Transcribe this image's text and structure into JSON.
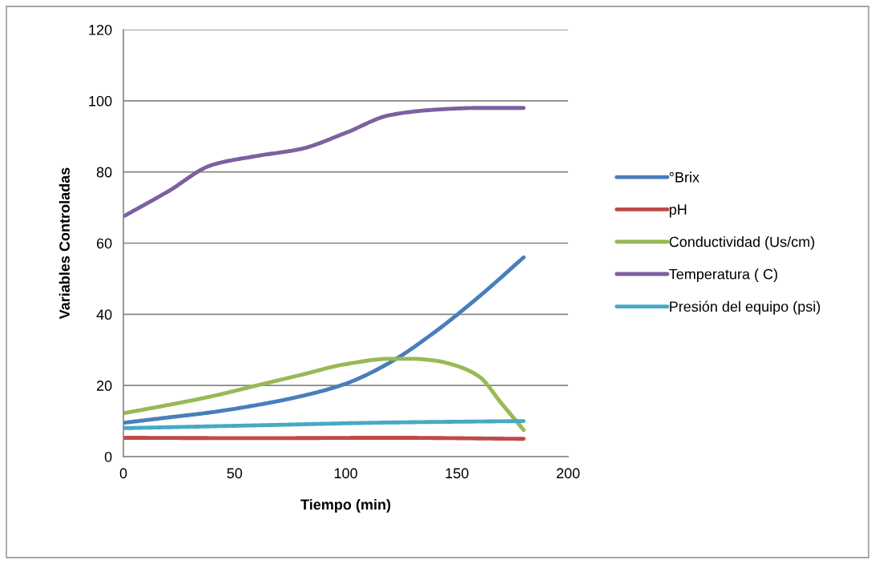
{
  "chart_data": {
    "type": "line",
    "xlabel": "Tiempo (min)",
    "ylabel": "Variables Controladas",
    "xlim": [
      0,
      200
    ],
    "xticks": [
      0,
      50,
      100,
      150,
      200
    ],
    "ylim": [
      0,
      120
    ],
    "yticks": [
      0,
      20,
      40,
      60,
      80,
      100,
      120
    ],
    "grid": "y",
    "legend": "right",
    "marker": "none",
    "line_style": "solid",
    "series": [
      {
        "name": "°Brix",
        "color": "#4a7ebb",
        "x": [
          0,
          20,
          40,
          60,
          80,
          100,
          120,
          140,
          160,
          180
        ],
        "values": [
          9.5,
          11,
          12.5,
          14.5,
          17,
          20.5,
          26.5,
          35,
          45,
          56
        ]
      },
      {
        "name": "pH",
        "color": "#be4b48",
        "x": [
          0,
          60,
          120,
          180
        ],
        "values": [
          5.3,
          5.2,
          5.3,
          5.0
        ]
      },
      {
        "name": "Conductividad (Us/cm)",
        "color": "#98b954",
        "x": [
          0,
          20,
          40,
          60,
          80,
          100,
          120,
          130,
          140,
          150,
          160,
          170,
          180
        ],
        "values": [
          12.2,
          14.5,
          17,
          20,
          23,
          26,
          27.5,
          27.5,
          27,
          25.5,
          22.5,
          15,
          7.5
        ]
      },
      {
        "name": "Temperatura ( C)",
        "color": "#7d60a0",
        "x": [
          0,
          20,
          40,
          60,
          80,
          100,
          120,
          140,
          160,
          180
        ],
        "values": [
          67.5,
          74.5,
          82,
          84.5,
          86.5,
          91,
          96,
          97.5,
          98,
          98
        ]
      },
      {
        "name": "Presión del equipo (psi)",
        "color": "#46aac5",
        "x": [
          0,
          60,
          120,
          180
        ],
        "values": [
          8,
          8.8,
          9.6,
          10
        ]
      }
    ]
  }
}
